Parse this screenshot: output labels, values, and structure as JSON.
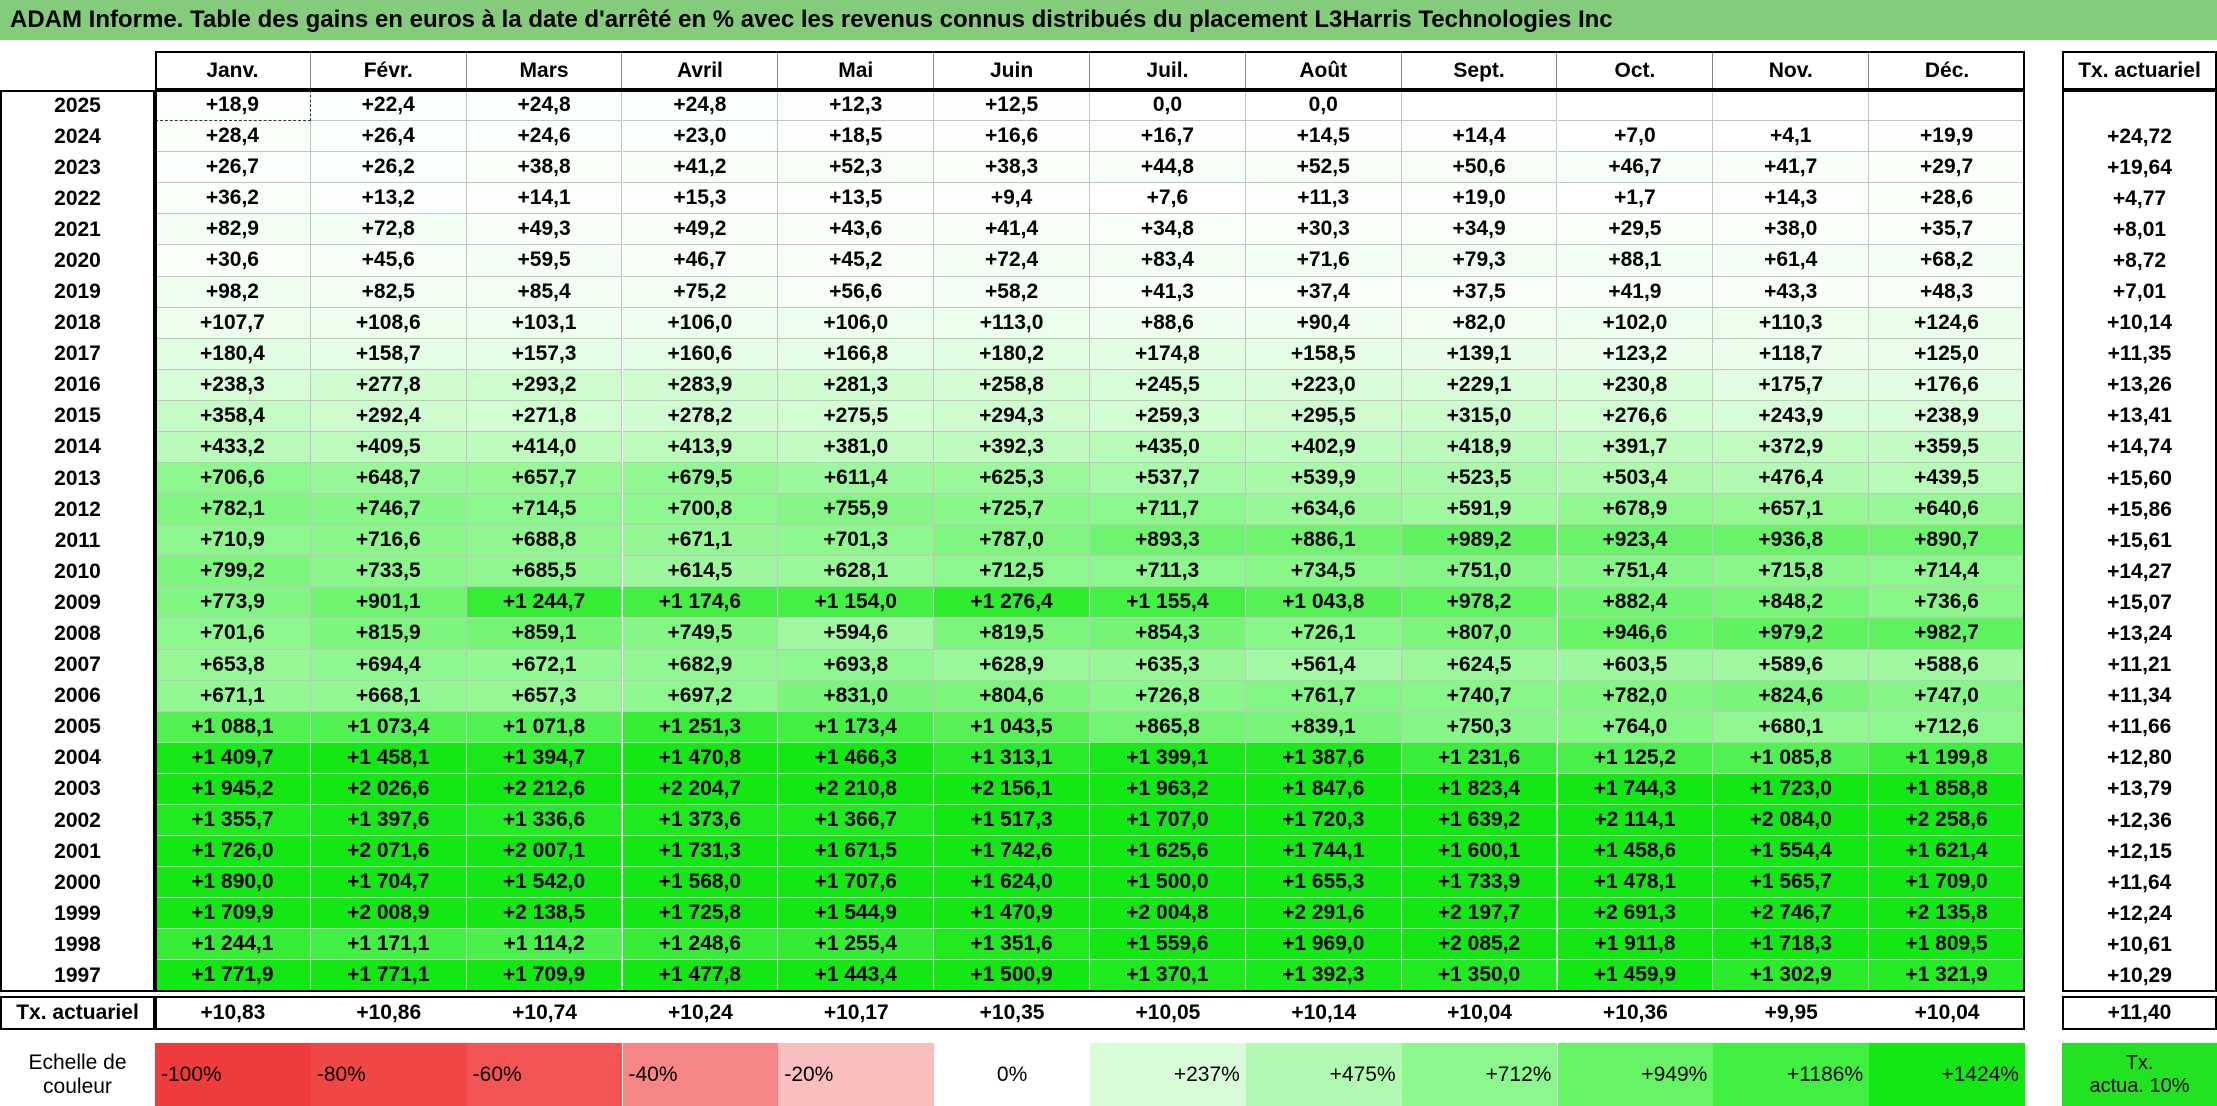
{
  "title": "ADAM Informe. Table des gains en euros à la date d'arrêté en % avec les revenus connus distribués du placement L3Harris Technologies Inc",
  "table": {
    "columns": [
      "Janv.",
      "Févr.",
      "Mars",
      "Avril",
      "Mai",
      "Juin",
      "Juil.",
      "Août",
      "Sept.",
      "Oct.",
      "Nov.",
      "Déc."
    ],
    "total_column": "Tx. actuariel",
    "rows": [
      {
        "year": "2025",
        "cells": [
          "+18,9",
          "+22,4",
          "+24,8",
          "+24,8",
          "+12,3",
          "+12,5",
          "0,0",
          "0,0",
          null,
          null,
          null,
          null
        ],
        "total": null
      },
      {
        "year": "2024",
        "cells": [
          "+28,4",
          "+26,4",
          "+24,6",
          "+23,0",
          "+18,5",
          "+16,6",
          "+16,7",
          "+14,5",
          "+14,4",
          "+7,0",
          "+4,1",
          "+19,9"
        ],
        "total": "+24,72"
      },
      {
        "year": "2023",
        "cells": [
          "+26,7",
          "+26,2",
          "+38,8",
          "+41,2",
          "+52,3",
          "+38,3",
          "+44,8",
          "+52,5",
          "+50,6",
          "+46,7",
          "+41,7",
          "+29,7"
        ],
        "total": "+19,64"
      },
      {
        "year": "2022",
        "cells": [
          "+36,2",
          "+13,2",
          "+14,1",
          "+15,3",
          "+13,5",
          "+9,4",
          "+7,6",
          "+11,3",
          "+19,0",
          "+1,7",
          "+14,3",
          "+28,6"
        ],
        "total": "+4,77"
      },
      {
        "year": "2021",
        "cells": [
          "+82,9",
          "+72,8",
          "+49,3",
          "+49,2",
          "+43,6",
          "+41,4",
          "+34,8",
          "+30,3",
          "+34,9",
          "+29,5",
          "+38,0",
          "+35,7"
        ],
        "total": "+8,01"
      },
      {
        "year": "2020",
        "cells": [
          "+30,6",
          "+45,6",
          "+59,5",
          "+46,7",
          "+45,2",
          "+72,4",
          "+83,4",
          "+71,6",
          "+79,3",
          "+88,1",
          "+61,4",
          "+68,2"
        ],
        "total": "+8,72"
      },
      {
        "year": "2019",
        "cells": [
          "+98,2",
          "+82,5",
          "+85,4",
          "+75,2",
          "+56,6",
          "+58,2",
          "+41,3",
          "+37,4",
          "+37,5",
          "+41,9",
          "+43,3",
          "+48,3"
        ],
        "total": "+7,01"
      },
      {
        "year": "2018",
        "cells": [
          "+107,7",
          "+108,6",
          "+103,1",
          "+106,0",
          "+106,0",
          "+113,0",
          "+88,6",
          "+90,4",
          "+82,0",
          "+102,0",
          "+110,3",
          "+124,6"
        ],
        "total": "+10,14"
      },
      {
        "year": "2017",
        "cells": [
          "+180,4",
          "+158,7",
          "+157,3",
          "+160,6",
          "+166,8",
          "+180,2",
          "+174,8",
          "+158,5",
          "+139,1",
          "+123,2",
          "+118,7",
          "+125,0"
        ],
        "total": "+11,35"
      },
      {
        "year": "2016",
        "cells": [
          "+238,3",
          "+277,8",
          "+293,2",
          "+283,9",
          "+281,3",
          "+258,8",
          "+245,5",
          "+223,0",
          "+229,1",
          "+230,8",
          "+175,7",
          "+176,6"
        ],
        "total": "+13,26"
      },
      {
        "year": "2015",
        "cells": [
          "+358,4",
          "+292,4",
          "+271,8",
          "+278,2",
          "+275,5",
          "+294,3",
          "+259,3",
          "+295,5",
          "+315,0",
          "+276,6",
          "+243,9",
          "+238,9"
        ],
        "total": "+13,41"
      },
      {
        "year": "2014",
        "cells": [
          "+433,2",
          "+409,5",
          "+414,0",
          "+413,9",
          "+381,0",
          "+392,3",
          "+435,0",
          "+402,9",
          "+418,9",
          "+391,7",
          "+372,9",
          "+359,5"
        ],
        "total": "+14,74"
      },
      {
        "year": "2013",
        "cells": [
          "+706,6",
          "+648,7",
          "+657,7",
          "+679,5",
          "+611,4",
          "+625,3",
          "+537,7",
          "+539,9",
          "+523,5",
          "+503,4",
          "+476,4",
          "+439,5"
        ],
        "total": "+15,60"
      },
      {
        "year": "2012",
        "cells": [
          "+782,1",
          "+746,7",
          "+714,5",
          "+700,8",
          "+755,9",
          "+725,7",
          "+711,7",
          "+634,6",
          "+591,9",
          "+678,9",
          "+657,1",
          "+640,6"
        ],
        "total": "+15,86"
      },
      {
        "year": "2011",
        "cells": [
          "+710,9",
          "+716,6",
          "+688,8",
          "+671,1",
          "+701,3",
          "+787,0",
          "+893,3",
          "+886,1",
          "+989,2",
          "+923,4",
          "+936,8",
          "+890,7"
        ],
        "total": "+15,61"
      },
      {
        "year": "2010",
        "cells": [
          "+799,2",
          "+733,5",
          "+685,5",
          "+614,5",
          "+628,1",
          "+712,5",
          "+711,3",
          "+734,5",
          "+751,0",
          "+751,4",
          "+715,8",
          "+714,4"
        ],
        "total": "+14,27"
      },
      {
        "year": "2009",
        "cells": [
          "+773,9",
          "+901,1",
          "+1 244,7",
          "+1 174,6",
          "+1 154,0",
          "+1 276,4",
          "+1 155,4",
          "+1 043,8",
          "+978,2",
          "+882,4",
          "+848,2",
          "+736,6"
        ],
        "total": "+15,07"
      },
      {
        "year": "2008",
        "cells": [
          "+701,6",
          "+815,9",
          "+859,1",
          "+749,5",
          "+594,6",
          "+819,5",
          "+854,3",
          "+726,1",
          "+807,0",
          "+946,6",
          "+979,2",
          "+982,7"
        ],
        "total": "+13,24"
      },
      {
        "year": "2007",
        "cells": [
          "+653,8",
          "+694,4",
          "+672,1",
          "+682,9",
          "+693,8",
          "+628,9",
          "+635,3",
          "+561,4",
          "+624,5",
          "+603,5",
          "+589,6",
          "+588,6"
        ],
        "total": "+11,21"
      },
      {
        "year": "2006",
        "cells": [
          "+671,1",
          "+668,1",
          "+657,3",
          "+697,2",
          "+831,0",
          "+804,6",
          "+726,8",
          "+761,7",
          "+740,7",
          "+782,0",
          "+824,6",
          "+747,0"
        ],
        "total": "+11,34"
      },
      {
        "year": "2005",
        "cells": [
          "+1 088,1",
          "+1 073,4",
          "+1 071,8",
          "+1 251,3",
          "+1 173,4",
          "+1 043,5",
          "+865,8",
          "+839,1",
          "+750,3",
          "+764,0",
          "+680,1",
          "+712,6"
        ],
        "total": "+11,66"
      },
      {
        "year": "2004",
        "cells": [
          "+1 409,7",
          "+1 458,1",
          "+1 394,7",
          "+1 470,8",
          "+1 466,3",
          "+1 313,1",
          "+1 399,1",
          "+1 387,6",
          "+1 231,6",
          "+1 125,2",
          "+1 085,8",
          "+1 199,8"
        ],
        "total": "+12,80"
      },
      {
        "year": "2003",
        "cells": [
          "+1 945,2",
          "+2 026,6",
          "+2 212,6",
          "+2 204,7",
          "+2 210,8",
          "+2 156,1",
          "+1 963,2",
          "+1 847,6",
          "+1 823,4",
          "+1 744,3",
          "+1 723,0",
          "+1 858,8"
        ],
        "total": "+13,79"
      },
      {
        "year": "2002",
        "cells": [
          "+1 355,7",
          "+1 397,6",
          "+1 336,6",
          "+1 373,6",
          "+1 366,7",
          "+1 517,3",
          "+1 707,0",
          "+1 720,3",
          "+1 639,2",
          "+2 114,1",
          "+2 084,0",
          "+2 258,6"
        ],
        "total": "+12,36"
      },
      {
        "year": "2001",
        "cells": [
          "+1 726,0",
          "+2 071,6",
          "+2 007,1",
          "+1 731,3",
          "+1 671,5",
          "+1 742,6",
          "+1 625,6",
          "+1 744,1",
          "+1 600,1",
          "+1 458,6",
          "+1 554,4",
          "+1 621,4"
        ],
        "total": "+12,15"
      },
      {
        "year": "2000",
        "cells": [
          "+1 890,0",
          "+1 704,7",
          "+1 542,0",
          "+1 568,0",
          "+1 707,6",
          "+1 624,0",
          "+1 500,0",
          "+1 655,3",
          "+1 733,9",
          "+1 478,1",
          "+1 565,7",
          "+1 709,0"
        ],
        "total": "+11,64"
      },
      {
        "year": "1999",
        "cells": [
          "+1 709,9",
          "+2 008,9",
          "+2 138,5",
          "+1 725,8",
          "+1 544,9",
          "+1 470,9",
          "+2 004,8",
          "+2 291,6",
          "+2 197,7",
          "+2 691,3",
          "+2 746,7",
          "+2 135,8"
        ],
        "total": "+12,24"
      },
      {
        "year": "1998",
        "cells": [
          "+1 244,1",
          "+1 171,1",
          "+1 114,2",
          "+1 248,6",
          "+1 255,4",
          "+1 351,6",
          "+1 559,6",
          "+1 969,0",
          "+2 085,2",
          "+1 911,8",
          "+1 718,3",
          "+1 809,5"
        ],
        "total": "+10,61"
      },
      {
        "year": "1997",
        "cells": [
          "+1 771,9",
          "+1 771,1",
          "+1 709,9",
          "+1 477,8",
          "+1 443,4",
          "+1 500,9",
          "+1 370,1",
          "+1 392,3",
          "+1 350,0",
          "+1 459,9",
          "+1 302,9",
          "+1 321,9"
        ],
        "total": "+10,29"
      }
    ],
    "footer": {
      "label": "Tx. actuariel",
      "cells": [
        "+10,83",
        "+10,86",
        "+10,74",
        "+10,24",
        "+10,17",
        "+10,35",
        "+10,05",
        "+10,14",
        "+10,04",
        "+10,36",
        "+9,95",
        "+10,04"
      ],
      "total": "+11,40"
    }
  },
  "scale": {
    "label_lines": [
      "Echelle de",
      "couleur"
    ],
    "items": [
      {
        "label": "-100%",
        "color": "#ef3b3b"
      },
      {
        "label": "-80%",
        "color": "#f14646"
      },
      {
        "label": "-60%",
        "color": "#f35454"
      },
      {
        "label": "-40%",
        "color": "#f68585"
      },
      {
        "label": "-20%",
        "color": "#fbbebe"
      },
      {
        "label": "0%",
        "color": "#ffffff"
      },
      {
        "label": "+237%",
        "color": "#d8fcd8"
      },
      {
        "label": "+475%",
        "color": "#b2fab2"
      },
      {
        "label": "+712%",
        "color": "#8cf78c"
      },
      {
        "label": "+949%",
        "color": "#66f366"
      },
      {
        "label": "+1186%",
        "color": "#40ef40"
      },
      {
        "label": "+1424%",
        "color": "#14e814"
      }
    ],
    "total_item": {
      "lines": [
        "Tx.",
        "actua. 10%"
      ],
      "color": "#22e322"
    }
  }
}
